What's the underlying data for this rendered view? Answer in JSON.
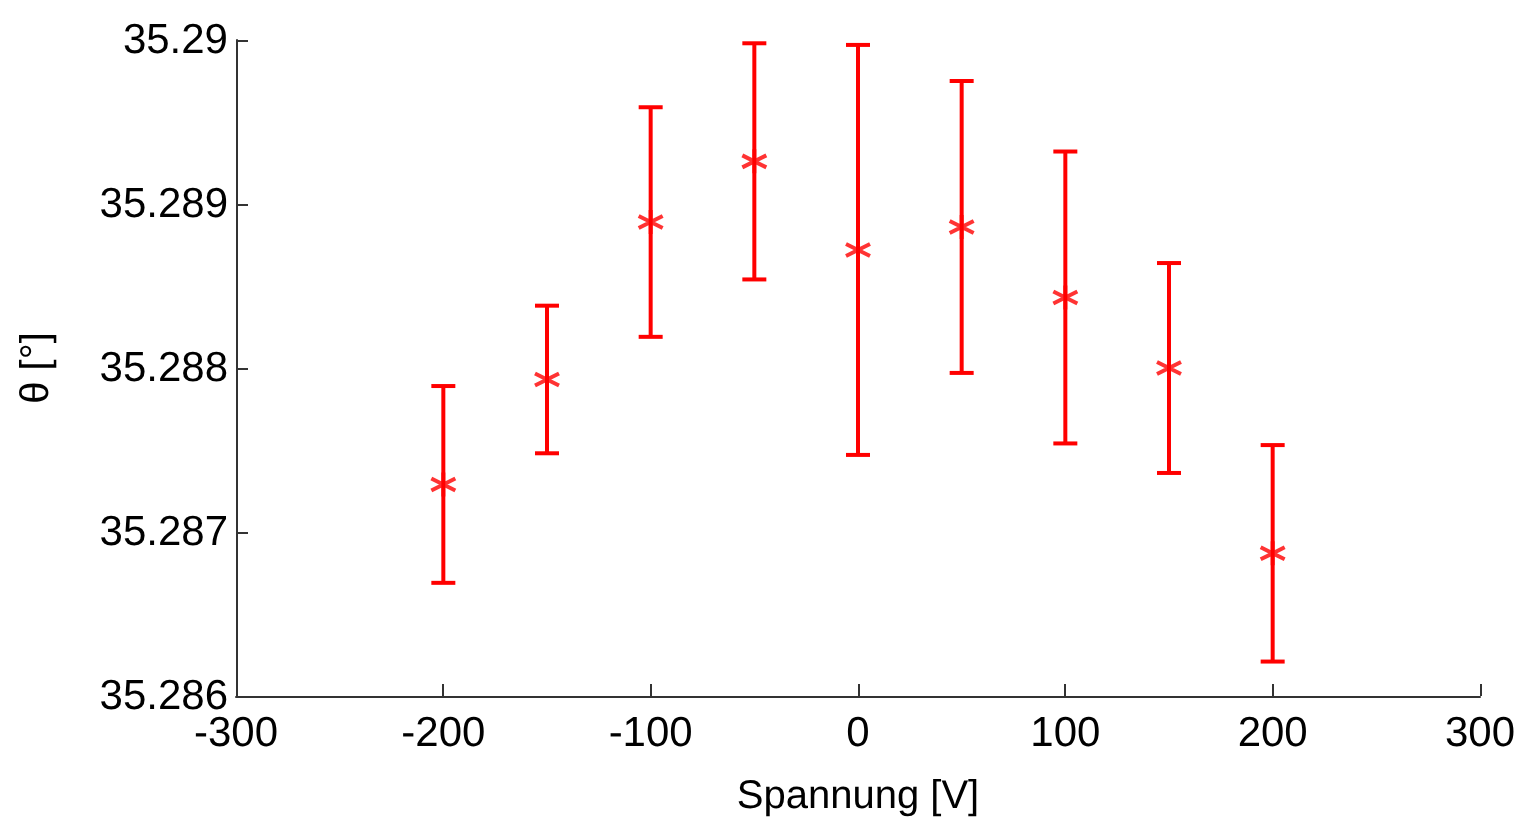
{
  "chart_data": {
    "type": "scatter",
    "xlabel": "Spannung [V]",
    "ylabel": "θ [°]",
    "x": [
      -200,
      -150,
      -100,
      -50,
      0,
      50,
      100,
      150,
      200
    ],
    "series": [
      {
        "color": "#ff0000",
        "values": [
          35.28729,
          35.28793,
          35.28889,
          35.28926,
          35.28872,
          35.28886,
          35.28843,
          35.288,
          35.28687
        ],
        "errors": [
          0.0006,
          0.00045,
          0.0007,
          0.00072,
          0.00125,
          0.00089,
          0.00089,
          0.00064,
          0.00066
        ]
      }
    ],
    "xlim": [
      -300,
      300
    ],
    "xticks": [
      -300,
      -200,
      -100,
      0,
      100,
      200,
      300
    ],
    "ylim": [
      35.286,
      35.29
    ],
    "yticks": [
      35.286,
      35.287,
      35.288,
      35.289,
      35.29
    ],
    "grid": false,
    "marker": "cross"
  }
}
